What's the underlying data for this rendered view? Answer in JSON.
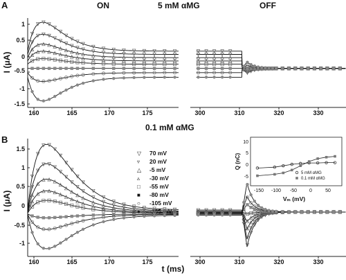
{
  "figure": {
    "panel_a": {
      "letter": "A",
      "label_on": "ON",
      "label_condition": "5 mM αMG",
      "label_off": "OFF",
      "ylabel": "I (μA)",
      "y_ticks": [
        "1",
        "0.5",
        "0",
        "-0.5",
        "-1",
        "-1.5"
      ],
      "x_ticks_on": [
        "160",
        "165",
        "170",
        "175"
      ],
      "x_ticks_off": [
        "300",
        "310",
        "320",
        "330"
      ]
    },
    "panel_b": {
      "letter": "B",
      "label_condition": "0.1 mM αMG",
      "ylabel": "I (μA)",
      "y_ticks": [
        "1.5",
        "1",
        "0.5",
        "0",
        "-0.5",
        "-1"
      ],
      "x_ticks_on": [
        "160",
        "165",
        "170",
        "175"
      ],
      "x_ticks_off": [
        "300",
        "310",
        "320",
        "330"
      ],
      "xlabel": "t (ms)",
      "legend": [
        "70 mV",
        "20 mV",
        "-5 mV",
        "-30 mV",
        "-55 mV",
        "-80 mV",
        "-105 mV",
        "-155 mV"
      ]
    },
    "inset": {
      "ylabel": "Q (nC)",
      "xlabel": "Vₘ (mV)",
      "y_ticks": [
        "10",
        "5",
        "0",
        "-5"
      ],
      "x_ticks": [
        "-150",
        "-100",
        "-50",
        "0",
        "50"
      ],
      "legend": [
        "5 mM αMG",
        "0.1 mM αMG"
      ]
    }
  },
  "chart_data": [
    {
      "type": "line",
      "panel": "A",
      "window": "ON",
      "x_unit": "ms",
      "xlim": [
        159,
        179
      ],
      "ylim": [
        -1.65,
        1.1
      ],
      "trace_model": "y = ss + (peak - ss) * ((t - 159) / 2) * exp(1 - (t - 159) / 2)",
      "peak_time": 161,
      "series": [
        {
          "name": "70 mV",
          "peak": 0.97,
          "steady": 0.08
        },
        {
          "name": "20 mV",
          "peak": 0.6,
          "steady": -0.02
        },
        {
          "name": "-5 mV",
          "peak": 0.3,
          "steady": -0.12
        },
        {
          "name": "-30 mV",
          "peak": 0.08,
          "steady": -0.22
        },
        {
          "name": "-55 mV",
          "peak": -0.15,
          "steady": -0.32
        },
        {
          "name": "-80 mV",
          "peak": -0.45,
          "steady": -0.45
        },
        {
          "name": "-105 mV",
          "peak": -0.85,
          "steady": -0.58
        },
        {
          "name": "-155 mV",
          "peak": -1.45,
          "steady": -0.72
        }
      ]
    },
    {
      "type": "line",
      "panel": "A",
      "window": "OFF",
      "x_unit": "ms",
      "xlim": [
        297,
        336
      ],
      "ylim": [
        -1.65,
        1.1
      ],
      "series": [
        {
          "name": "70 mV",
          "steady": 0.08,
          "peak": -0.6
        },
        {
          "name": "20 mV",
          "steady": -0.02,
          "peak": -0.55
        },
        {
          "name": "-5 mV",
          "steady": -0.12,
          "peak": -0.5
        },
        {
          "name": "-30 mV",
          "steady": -0.22,
          "peak": -0.48
        },
        {
          "name": "-55 mV",
          "steady": -0.32,
          "peak": -0.45
        },
        {
          "name": "-80 mV",
          "steady": -0.45,
          "peak": -0.45
        },
        {
          "name": "-105 mV",
          "steady": -0.58,
          "peak": -0.35
        },
        {
          "name": "-155 mV",
          "steady": -0.72,
          "peak": -0.25
        }
      ],
      "baseline": -0.45
    },
    {
      "type": "line",
      "panel": "B",
      "window": "ON",
      "x_unit": "ms",
      "xlim": [
        159,
        179
      ],
      "ylim": [
        -1.15,
        1.9
      ],
      "peak_time": 161.5,
      "series": [
        {
          "name": "70 mV",
          "peak": 1.75,
          "steady": 0.05
        },
        {
          "name": "20 mV",
          "peak": 1.25,
          "steady": 0.02
        },
        {
          "name": "-5 mV",
          "peak": 0.85,
          "steady": 0.0
        },
        {
          "name": "-30 mV",
          "peak": 0.55,
          "steady": -0.02
        },
        {
          "name": "-55 mV",
          "peak": 0.3,
          "steady": -0.03
        },
        {
          "name": "-80 mV",
          "peak": -0.15,
          "steady": -0.05
        },
        {
          "name": "-105 mV",
          "peak": -0.45,
          "steady": -0.06
        },
        {
          "name": "-155 mV",
          "peak": -0.95,
          "steady": -0.08
        }
      ]
    },
    {
      "type": "line",
      "panel": "B",
      "window": "OFF",
      "x_unit": "ms",
      "xlim": [
        297,
        336
      ],
      "ylim": [
        -1.15,
        1.9
      ],
      "series": [
        {
          "name": "70 mV",
          "steady": 0.05,
          "peak": -0.9
        },
        {
          "name": "20 mV",
          "steady": 0.02,
          "peak": -0.7
        },
        {
          "name": "-5 mV",
          "steady": 0.0,
          "peak": -0.45
        },
        {
          "name": "-30 mV",
          "steady": -0.02,
          "peak": -0.25
        },
        {
          "name": "-55 mV",
          "steady": -0.03,
          "peak": -0.05
        },
        {
          "name": "-80 mV",
          "steady": -0.05,
          "peak": 0.2
        },
        {
          "name": "-105 mV",
          "steady": -0.06,
          "peak": 0.4
        },
        {
          "name": "-155 mV",
          "steady": -0.08,
          "peak": 0.75
        }
      ],
      "baseline": 0.0
    },
    {
      "type": "scatter",
      "panel": "B-inset",
      "x_unit": "mV",
      "y_unit": "nC",
      "xlim": [
        -175,
        90
      ],
      "ylim": [
        -6,
        11
      ],
      "series": [
        {
          "name": "5 mM αMG",
          "x": [
            -155,
            -105,
            -80,
            -55,
            -30,
            -5,
            20,
            45,
            70
          ],
          "y": [
            0.2,
            0.5,
            1.0,
            1.5,
            1.8,
            2.0,
            2.0,
            2.1,
            2.1
          ]
        },
        {
          "name": "0.1 mM αMG",
          "x": [
            -155,
            -105,
            -80,
            -55,
            -30,
            -5,
            20,
            45,
            70
          ],
          "y": [
            -2.5,
            -2.0,
            -1.5,
            -0.5,
            1.0,
            2.5,
            3.5,
            4.0,
            4.3
          ]
        }
      ]
    }
  ]
}
